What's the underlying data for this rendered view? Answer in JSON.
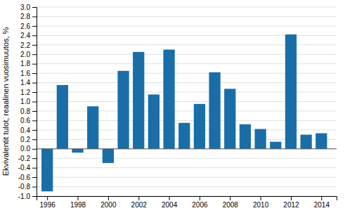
{
  "chart_data": {
    "type": "bar",
    "ylabel": "Ekvivalentit tulot, reaalinen vuosimuutos, %",
    "x": [
      1996,
      1997,
      1998,
      1999,
      2000,
      2001,
      2002,
      2003,
      2004,
      2005,
      2006,
      2007,
      2008,
      2009,
      2010,
      2011,
      2012,
      2013,
      2014
    ],
    "values": [
      -0.9,
      1.35,
      -0.08,
      0.9,
      -0.3,
      1.65,
      2.05,
      1.15,
      2.1,
      0.55,
      0.95,
      1.62,
      1.27,
      0.52,
      0.42,
      0.15,
      2.42,
      0.3,
      0.33
    ],
    "color": "#1a6ea8",
    "xlim": [
      1995.3,
      2015.0
    ],
    "xticks": [
      1996,
      1998,
      2000,
      2002,
      2004,
      2006,
      2008,
      2010,
      2012,
      2014
    ],
    "ylim": [
      -1.0,
      3.0
    ],
    "yticks": [
      {
        "value": -1.0,
        "label": "-1.0"
      },
      -0.8,
      -0.6,
      -0.4,
      -0.2,
      {
        "value": 0.0,
        "label": "0.0"
      },
      0.2,
      0.4,
      0.6,
      0.8,
      {
        "value": 1.0,
        "label": "1.0"
      },
      1.2,
      1.4,
      1.6,
      1.8,
      {
        "value": 2.0,
        "label": "2.0"
      },
      2.2,
      2.4,
      2.6,
      2.8,
      {
        "value": 3.0,
        "label": "3.0"
      }
    ],
    "grid": true
  }
}
